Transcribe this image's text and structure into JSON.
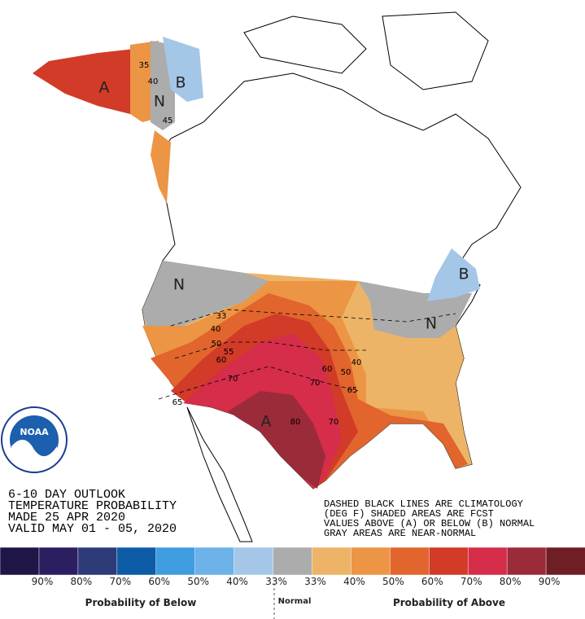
{
  "header": {
    "lines": [
      "6-10 DAY OUTLOOK",
      "TEMPERATURE PROBABILITY",
      "MADE  25 APR 2020",
      "VALID  MAY 01 - 05, 2020"
    ]
  },
  "notes": {
    "lines": [
      "DASHED BLACK LINES ARE CLIMATOLOGY",
      "(DEG F) SHADED AREAS ARE FCST",
      "VALUES ABOVE (A) OR BELOW (B) NORMAL",
      "GRAY AREAS ARE NEAR-NORMAL"
    ]
  },
  "logo": {
    "text": "NOAA"
  },
  "map": {
    "labels": [
      "A",
      "B",
      "N",
      "N",
      "B",
      "N",
      "A",
      "33",
      "40",
      "50",
      "55",
      "60",
      "70",
      "80",
      "70",
      "60",
      "50",
      "40",
      "65",
      "70",
      "65",
      "35",
      "40",
      "45"
    ]
  },
  "legend": {
    "colors": [
      "#1f1546",
      "#2b1f62",
      "#2e3b79",
      "#0d5ca8",
      "#3f9de0",
      "#6db2e8",
      "#a4c7e8",
      "#acacac",
      "#edb467",
      "#ec9545",
      "#e1652d",
      "#d13b28",
      "#d52d4a",
      "#9b2b39",
      "#6f1f24"
    ],
    "labels": [
      "90%",
      "80%",
      "70%",
      "60%",
      "50%",
      "40%",
      "33%",
      "33%",
      "40%",
      "50%",
      "60%",
      "70%",
      "80%",
      "90%"
    ],
    "below": "Probability of Below",
    "normal": "Normal",
    "above": "Probability of Above"
  }
}
